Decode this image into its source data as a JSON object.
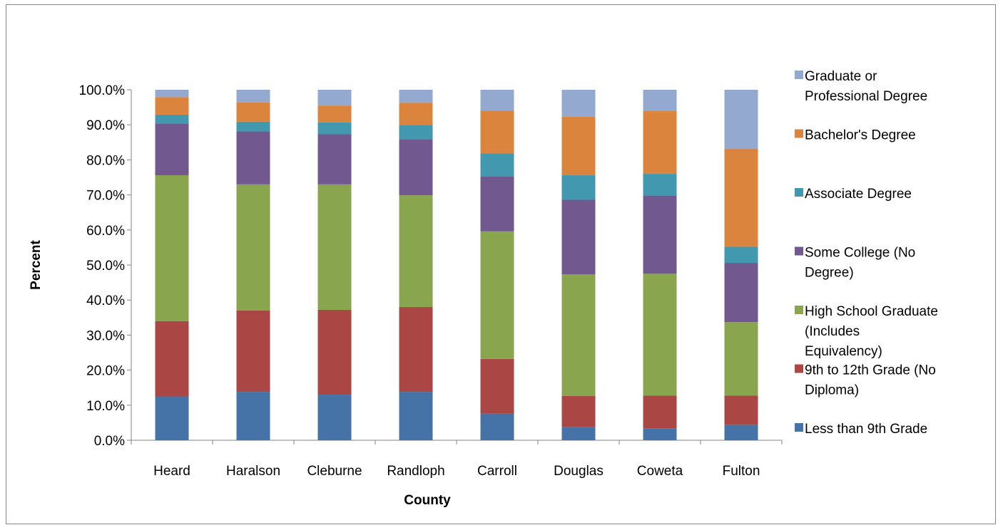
{
  "chart_data": {
    "type": "bar",
    "stacked": true,
    "title": "",
    "xlabel": "County",
    "ylabel": "Percent",
    "ylim": [
      0,
      100
    ],
    "y_ticks": [
      "0.0%",
      "10.0%",
      "20.0%",
      "30.0%",
      "40.0%",
      "50.0%",
      "60.0%",
      "70.0%",
      "80.0%",
      "90.0%",
      "100.0%"
    ],
    "grid": false,
    "legend_position": "right",
    "categories": [
      "Heard",
      "Haralson",
      "Cleburne",
      "Randloph",
      "Carroll",
      "Douglas",
      "Coweta",
      "Fulton"
    ],
    "series": [
      {
        "name": "Less than 9th Grade",
        "color": "#4572a7",
        "values": [
          12.5,
          13.8,
          13.0,
          13.8,
          7.6,
          3.7,
          3.4,
          4.4
        ]
      },
      {
        "name": "9th to 12th Grade (No Diploma)",
        "color": "#aa4643",
        "values": [
          21.5,
          23.2,
          24.2,
          24.2,
          15.6,
          8.9,
          9.3,
          8.3
        ]
      },
      {
        "name": "High School Graduate (Includes Equivalency)",
        "color": "#89a54e",
        "values": [
          41.6,
          36.0,
          35.8,
          31.9,
          36.4,
          34.7,
          34.8,
          21.0
        ]
      },
      {
        "name": "Some College (No Degree)",
        "color": "#71588f",
        "values": [
          14.8,
          15.1,
          14.3,
          16.0,
          15.6,
          21.3,
          22.3,
          16.9
        ]
      },
      {
        "name": "Associate Degree",
        "color": "#4198af",
        "values": [
          2.5,
          2.8,
          3.4,
          4.1,
          6.6,
          7.0,
          6.2,
          4.6
        ]
      },
      {
        "name": "Bachelor's Degree",
        "color": "#db843d",
        "values": [
          5.0,
          5.5,
          4.8,
          6.3,
          12.2,
          16.7,
          17.9,
          28.0
        ]
      },
      {
        "name": "Graduate or Professional Degree",
        "color": "#93a9cf",
        "values": [
          2.1,
          3.6,
          4.5,
          3.7,
          6.0,
          7.7,
          6.1,
          16.8
        ]
      }
    ]
  }
}
